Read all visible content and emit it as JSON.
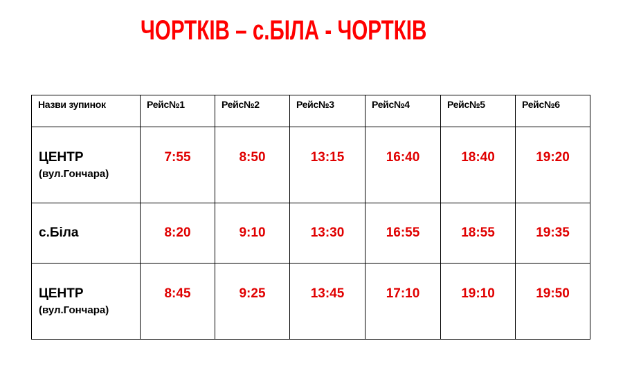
{
  "title": "ЧОРТКІВ – с.БІЛА - ЧОРТКІВ",
  "colors": {
    "accent": "#ff0000",
    "times": "#e00000"
  },
  "table": {
    "headers": [
      "Назви зупинок",
      "Рейс№1",
      "Рейс№2",
      "Рейс№3",
      "Рейс№4",
      "Рейс№5",
      "Рейс№6"
    ],
    "rows": [
      {
        "stop": "ЦЕНТР",
        "stop_sub": "(вул.Гончара)",
        "times": [
          "7:55",
          "8:50",
          "13:15",
          "16:40",
          "18:40",
          "19:20"
        ]
      },
      {
        "stop": "с.Біла",
        "times": [
          "8:20",
          "9:10",
          "13:30",
          "16:55",
          "18:55",
          "19:35"
        ]
      },
      {
        "stop": "ЦЕНТР",
        "stop_sub": "(вул.Гончара)",
        "times": [
          "8:45",
          "9:25",
          "13:45",
          "17:10",
          "19:10",
          "19:50"
        ]
      }
    ]
  }
}
